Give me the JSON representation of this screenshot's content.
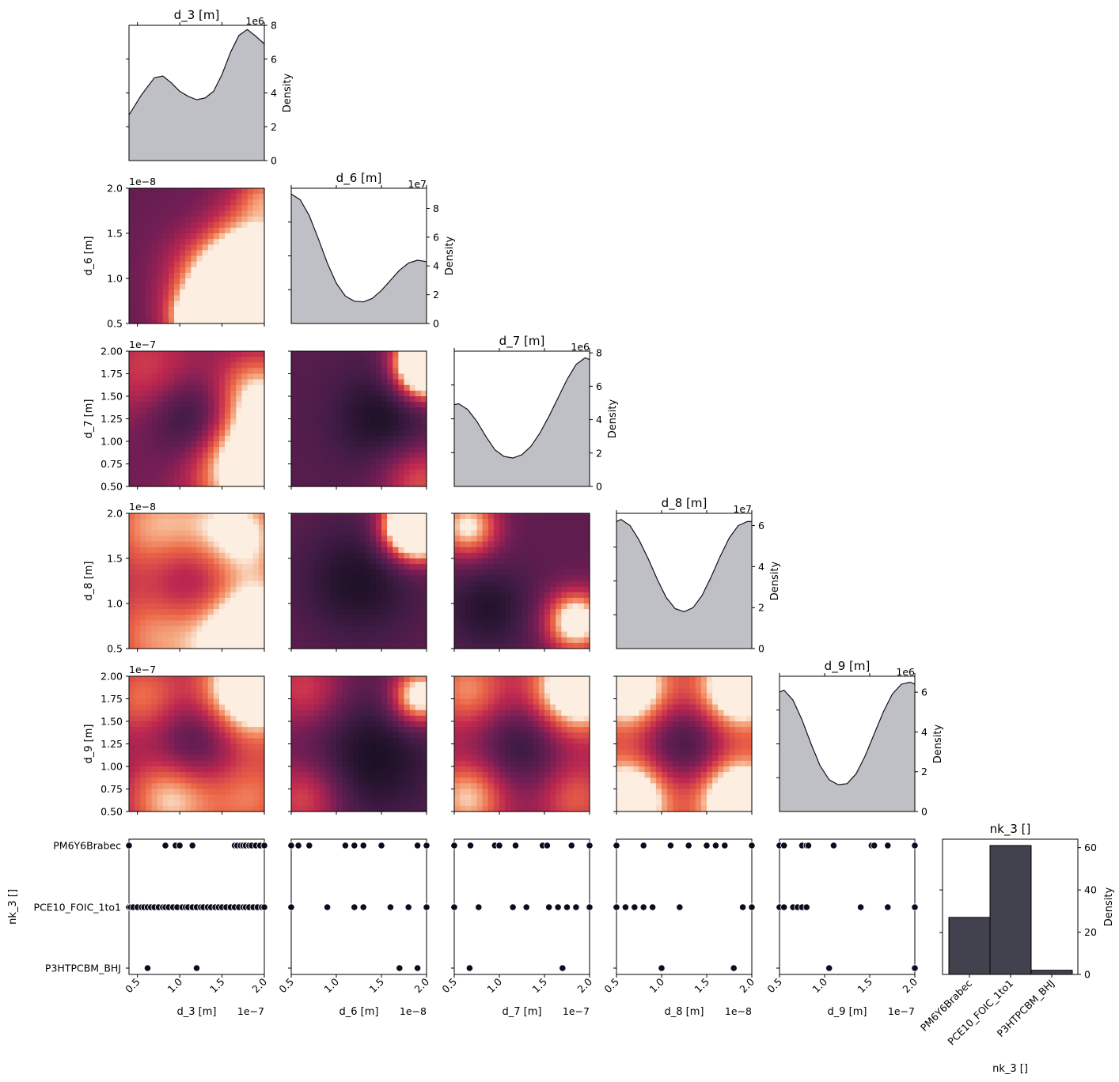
{
  "figure": {
    "kind": "corner plot",
    "density_label": "Density"
  },
  "chart_data": {
    "type": "corner",
    "variables": [
      "d_3 [m]",
      "d_6 [m]",
      "d_7 [m]",
      "d_8 [m]",
      "d_9 [m]",
      "nk_3 []"
    ],
    "continuous": [
      {
        "label": "d_3 [m]",
        "ticks": [
          "0.5",
          "1.0",
          "1.5",
          "2.0"
        ],
        "tick_values": [
          0.5,
          1.0,
          1.5,
          2.0
        ],
        "range": [
          0.4,
          2.0
        ],
        "offset": "1e−7",
        "diag": {
          "offset": "1e6",
          "ticks": [
            "0",
            "2",
            "4",
            "6",
            "8"
          ],
          "tick_values": [
            0,
            2,
            4,
            6,
            8
          ],
          "ylim": [
            0,
            8
          ],
          "x": [
            0.4,
            0.55,
            0.7,
            0.8,
            0.9,
            1.0,
            1.1,
            1.2,
            1.3,
            1.4,
            1.5,
            1.6,
            1.7,
            1.8,
            1.9,
            2.0
          ],
          "y": [
            2.7,
            3.9,
            4.9,
            5.0,
            4.6,
            4.1,
            3.8,
            3.6,
            3.7,
            4.1,
            5.1,
            6.4,
            7.4,
            7.75,
            7.35,
            6.9
          ]
        }
      },
      {
        "label": "d_6 [m]",
        "ticks": [
          "0.5",
          "1.0",
          "1.5",
          "2.0"
        ],
        "tick_values": [
          0.5,
          1.0,
          1.5,
          2.0
        ],
        "range": [
          0.5,
          2.0
        ],
        "offset": "1e−8",
        "diag": {
          "offset": "1e7",
          "ticks": [
            "0",
            "2",
            "4",
            "6",
            "8"
          ],
          "tick_values": [
            0,
            2,
            4,
            6,
            8
          ],
          "ylim": [
            0,
            9.4
          ],
          "x": [
            0.5,
            0.6,
            0.7,
            0.8,
            0.9,
            1.0,
            1.1,
            1.2,
            1.3,
            1.4,
            1.5,
            1.6,
            1.7,
            1.8,
            1.9,
            2.0
          ],
          "y": [
            9.0,
            8.6,
            7.5,
            5.9,
            4.2,
            2.8,
            1.9,
            1.55,
            1.5,
            1.75,
            2.3,
            3.0,
            3.7,
            4.2,
            4.4,
            4.3
          ]
        }
      },
      {
        "label": "d_7 [m]",
        "ticks": [
          "0.5",
          "1.0",
          "1.5",
          "2.0"
        ],
        "tick_values": [
          0.5,
          1.0,
          1.5,
          2.0
        ],
        "range": [
          0.5,
          2.0
        ],
        "offset": "1e−7",
        "diag": {
          "offset": "1e6",
          "ticks": [
            "0",
            "2",
            "4",
            "6",
            "8"
          ],
          "tick_values": [
            0,
            2,
            4,
            6,
            8
          ],
          "ylim": [
            0,
            8.1
          ],
          "x": [
            0.5,
            0.55,
            0.65,
            0.75,
            0.85,
            0.95,
            1.05,
            1.15,
            1.25,
            1.35,
            1.45,
            1.55,
            1.65,
            1.75,
            1.85,
            1.95,
            2.0
          ],
          "y": [
            4.9,
            4.95,
            4.6,
            3.9,
            3.0,
            2.2,
            1.8,
            1.7,
            1.9,
            2.4,
            3.2,
            4.2,
            5.3,
            6.4,
            7.3,
            7.7,
            7.6
          ]
        }
      },
      {
        "label": "d_8 [m]",
        "ticks": [
          "0.5",
          "1.0",
          "1.5",
          "2.0"
        ],
        "tick_values": [
          0.5,
          1.0,
          1.5,
          2.0
        ],
        "range": [
          0.5,
          2.0
        ],
        "offset": "1e−8",
        "diag": {
          "offset": "1e7",
          "ticks": [
            "0",
            "2",
            "4",
            "6"
          ],
          "tick_values": [
            0,
            2,
            4,
            6
          ],
          "ylim": [
            0,
            6.6
          ],
          "x": [
            0.5,
            0.55,
            0.65,
            0.75,
            0.85,
            0.95,
            1.05,
            1.15,
            1.25,
            1.35,
            1.45,
            1.55,
            1.65,
            1.75,
            1.85,
            1.95,
            2.0
          ],
          "y": [
            6.2,
            6.3,
            6.0,
            5.3,
            4.4,
            3.4,
            2.5,
            1.95,
            1.8,
            2.0,
            2.6,
            3.5,
            4.5,
            5.4,
            6.0,
            6.2,
            6.2
          ]
        }
      },
      {
        "label": "d_9 [m]",
        "ticks": [
          "0.5",
          "1.0",
          "1.5",
          "2.0"
        ],
        "tick_values": [
          0.5,
          1.0,
          1.5,
          2.0
        ],
        "range": [
          0.5,
          2.0
        ],
        "offset": "1e−7",
        "diag": {
          "offset": "1e6",
          "ticks": [
            "0",
            "2",
            "4",
            "6"
          ],
          "tick_values": [
            0,
            2,
            4,
            6
          ],
          "ylim": [
            0,
            6.8
          ],
          "x": [
            0.5,
            0.55,
            0.65,
            0.75,
            0.85,
            0.95,
            1.05,
            1.15,
            1.25,
            1.35,
            1.45,
            1.55,
            1.65,
            1.75,
            1.85,
            1.95,
            2.0
          ],
          "y": [
            6.0,
            6.1,
            5.6,
            4.6,
            3.4,
            2.3,
            1.6,
            1.35,
            1.4,
            1.9,
            2.8,
            3.9,
            5.0,
            5.9,
            6.4,
            6.5,
            6.4
          ]
        }
      }
    ],
    "categorical": {
      "label": "nk_3 []",
      "categories": [
        "PM6Y6Brabec",
        "PCE10_FOIC_1to1",
        "P3HTPCBM_BHJ"
      ],
      "hist": {
        "values": [
          27,
          61,
          2
        ],
        "ylim": [
          0,
          64
        ],
        "ticks": [
          "0",
          "20",
          "40",
          "60"
        ],
        "tick_values": [
          0,
          20,
          40,
          60
        ]
      }
    },
    "heatmap_blobs": [
      {
        "cell": "d_6 [m] vs d_3 [m]",
        "x": 0,
        "y": 1,
        "base": 0.35,
        "blobs": [
          [
            0.8,
            0.5,
            0.42,
            0.85
          ],
          [
            0.8,
            0.9,
            0.35,
            0.95
          ],
          [
            1.0,
            0.05,
            0.18,
            0.3
          ],
          [
            1.0,
            0.55,
            0.2,
            0.25
          ],
          [
            0.5,
            1.0,
            0.25,
            0.3
          ],
          [
            0.5,
            0.95,
            0.15,
            0.35
          ],
          [
            0.6,
            0.3,
            0.3,
            -0.25
          ]
        ]
      },
      {
        "cell": "d_7 [m] vs d_3 [m]",
        "x": 0,
        "y": 2,
        "base": 0.4,
        "blobs": [
          [
            0.9,
            0.82,
            0.4,
            0.95
          ],
          [
            0.95,
            0.3,
            0.3,
            0.5
          ],
          [
            0.15,
            0.15,
            0.38,
            0.3
          ],
          [
            0.55,
            0.5,
            0.3,
            -0.25
          ],
          [
            0.4,
            0.5,
            0.3,
            -0.2
          ]
        ]
      },
      {
        "cell": "d_7 [m] vs d_6 [m]",
        "x": 1,
        "y": 2,
        "base": 0.3,
        "blobs": [
          [
            1.0,
            0.05,
            0.22,
            0.85
          ],
          [
            1.0,
            0.15,
            0.22,
            0.85
          ],
          [
            0.95,
            0.95,
            0.3,
            0.45
          ],
          [
            0.7,
            0.5,
            0.35,
            -0.28
          ]
        ]
      },
      {
        "cell": "d_8 [m] vs d_3 [m]",
        "x": 0,
        "y": 3,
        "base": 0.42,
        "blobs": [
          [
            0.9,
            0.9,
            0.4,
            0.95
          ],
          [
            0.8,
            0.15,
            0.35,
            0.65
          ],
          [
            0.2,
            0.1,
            0.38,
            0.5
          ],
          [
            0.2,
            0.9,
            0.4,
            0.45
          ],
          [
            0.5,
            0.5,
            0.35,
            -0.3
          ]
        ]
      },
      {
        "cell": "d_8 [m] vs d_6 [m]",
        "x": 1,
        "y": 3,
        "base": 0.33,
        "blobs": [
          [
            0.95,
            0.1,
            0.22,
            0.85
          ],
          [
            0.9,
            0.1,
            0.22,
            0.8
          ],
          [
            0.5,
            0.5,
            0.4,
            -0.28
          ]
        ]
      },
      {
        "cell": "d_8 [m] vs d_7 [m]",
        "x": 2,
        "y": 3,
        "base": 0.33,
        "blobs": [
          [
            0.9,
            0.8,
            0.22,
            0.85
          ],
          [
            0.1,
            0.1,
            0.22,
            0.7
          ],
          [
            0.25,
            0.7,
            0.3,
            -0.25
          ]
        ]
      },
      {
        "cell": "d_9 [m] vs d_3 [m]",
        "x": 0,
        "y": 4,
        "base": 0.42,
        "blobs": [
          [
            0.9,
            0.1,
            0.35,
            0.95
          ],
          [
            0.3,
            0.9,
            0.32,
            0.55
          ],
          [
            0.1,
            0.15,
            0.3,
            0.4
          ],
          [
            0.9,
            0.9,
            0.35,
            0.4
          ],
          [
            0.5,
            0.5,
            0.3,
            -0.3
          ]
        ]
      },
      {
        "cell": "d_9 [m] vs d_6 [m]",
        "x": 1,
        "y": 4,
        "base": 0.35,
        "blobs": [
          [
            0.95,
            0.15,
            0.2,
            0.85
          ],
          [
            0.1,
            0.1,
            0.3,
            0.35
          ],
          [
            0.1,
            0.9,
            0.28,
            0.4
          ],
          [
            0.6,
            0.6,
            0.45,
            -0.32
          ]
        ]
      },
      {
        "cell": "d_9 [m] vs d_7 [m]",
        "x": 2,
        "y": 4,
        "base": 0.42,
        "blobs": [
          [
            0.9,
            0.1,
            0.32,
            0.9
          ],
          [
            0.1,
            0.9,
            0.28,
            0.55
          ],
          [
            0.1,
            0.1,
            0.3,
            0.45
          ],
          [
            0.9,
            0.9,
            0.28,
            0.35
          ],
          [
            0.5,
            0.5,
            0.3,
            -0.3
          ]
        ]
      },
      {
        "cell": "d_9 [m] vs d_8 [m]",
        "x": 3,
        "y": 4,
        "base": 0.5,
        "blobs": [
          [
            0.1,
            0.9,
            0.3,
            0.8
          ],
          [
            0.9,
            0.9,
            0.3,
            0.85
          ],
          [
            0.1,
            0.1,
            0.3,
            0.75
          ],
          [
            0.9,
            0.1,
            0.3,
            0.8
          ],
          [
            0.5,
            0.5,
            0.3,
            -0.35
          ]
        ]
      }
    ],
    "scatter": [
      {
        "vs": "d_3 [m]",
        "x_values": [
          [
            0.4,
            0.83,
            0.95,
            1.0,
            1.15,
            1.65,
            1.68,
            1.72,
            1.75,
            1.78,
            1.82,
            1.85,
            1.9,
            1.95,
            2.0
          ],
          [
            0.4,
            0.42,
            0.45,
            0.5,
            0.55,
            0.58,
            0.62,
            0.66,
            0.7,
            0.75,
            0.8,
            0.83,
            0.87,
            0.92,
            0.97,
            1.03,
            1.07,
            1.1,
            1.15,
            1.2,
            1.25,
            1.28,
            1.33,
            1.37,
            1.42,
            1.46,
            1.5,
            1.55,
            1.6,
            1.65,
            1.7,
            1.75,
            1.78,
            1.82,
            1.87,
            1.92,
            1.97,
            2.0
          ],
          [
            0.62,
            1.2
          ]
        ]
      },
      {
        "vs": "d_6 [m]",
        "x_values": [
          [
            0.5,
            0.58,
            0.7,
            1.1,
            1.2,
            1.3,
            1.5,
            1.9,
            2.0
          ],
          [
            0.5,
            0.9,
            1.2,
            1.3,
            1.6,
            1.8,
            2.0
          ],
          [
            1.7,
            1.9
          ]
        ]
      },
      {
        "vs": "d_7 [m]",
        "x_values": [
          [
            0.5,
            0.68,
            0.95,
            1.0,
            1.18,
            1.48,
            1.53,
            1.8,
            2.0
          ],
          [
            0.5,
            0.77,
            1.15,
            1.3,
            1.55,
            1.65,
            1.75,
            1.85,
            2.0
          ],
          [
            0.67,
            1.7
          ]
        ]
      },
      {
        "vs": "d_8 [m]",
        "x_values": [
          [
            0.5,
            0.8,
            1.1,
            1.3,
            1.5,
            1.6,
            1.7,
            2.0
          ],
          [
            0.5,
            0.6,
            0.7,
            0.8,
            0.9,
            1.2,
            1.9,
            2.0
          ],
          [
            1.0,
            1.8
          ]
        ]
      },
      {
        "vs": "d_9 [m]",
        "x_values": [
          [
            0.5,
            0.55,
            0.75,
            0.8,
            0.82,
            1.1,
            1.52,
            1.55,
            1.7,
            2.0
          ],
          [
            0.5,
            0.55,
            0.65,
            0.7,
            0.75,
            0.8,
            1.4,
            1.7,
            2.0
          ],
          [
            1.05,
            2.0
          ]
        ]
      }
    ]
  }
}
